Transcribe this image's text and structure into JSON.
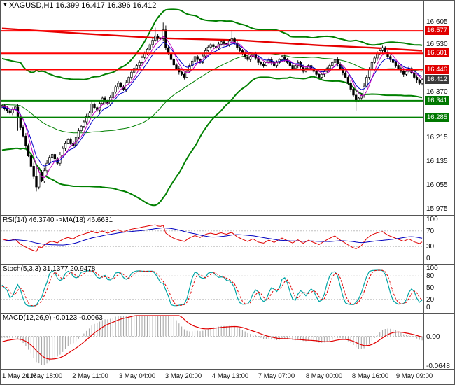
{
  "window": {
    "title_marker": "▼",
    "title": "XAGUSD,H1",
    "ohlc_text": "16.399 16.417 16.396 16.412"
  },
  "colors": {
    "level_red": "#FF0000",
    "level_green": "#008000",
    "bollinger": "#008000",
    "trend_ma": "#E60000",
    "ema_fast": "#0000C8",
    "sma_fast": "#C000C0",
    "rsi_line": "#E00000",
    "rsi_ma": "#0000C0",
    "stoch_k": "#00A5A5",
    "stoch_d": "#E00000",
    "macd_hist": "#A8A8A8",
    "macd_signal": "#E00000",
    "axis_text": "#111111",
    "current_box": "#3A3A3A"
  },
  "chart_data": {
    "type": "candlestick",
    "symbol": "XAGUSD",
    "timeframe": "H1",
    "title": "XAGUSD,H1 16.399 16.417 16.396 16.412",
    "x_labels": [
      "1 May 2018",
      "1 May 18:00",
      "2 May 11:00",
      "3 May 04:00",
      "3 May 20:00",
      "4 May 13:00",
      "7 May 07:00",
      "8 May 00:00",
      "8 May 16:00",
      "9 May 09:00"
    ],
    "y_axis_ticks": [
      "16.605",
      "16.530",
      "16.370",
      "16.215",
      "16.135",
      "16.055",
      "15.975"
    ],
    "levels": [
      {
        "price": 16.577,
        "color": "red"
      },
      {
        "price": 16.501,
        "color": "red"
      },
      {
        "price": 16.446,
        "color": "red"
      },
      {
        "price": 16.341,
        "color": "green"
      },
      {
        "price": 16.285,
        "color": "green"
      }
    ],
    "current_price": 16.412,
    "price_range": {
      "max": 16.66,
      "min": 15.965
    },
    "pre_closes": [
      16.5,
      16.48,
      16.45,
      16.47,
      16.44,
      16.41,
      16.43,
      16.4,
      16.37,
      16.39,
      16.36,
      16.33,
      16.35,
      16.32,
      16.29,
      16.31,
      16.28,
      16.25,
      16.27,
      16.24,
      16.22,
      16.24,
      16.26,
      16.28,
      16.26,
      16.24,
      16.26,
      16.28,
      16.3,
      16.32,
      16.3,
      16.28,
      16.3,
      16.32,
      16.34,
      16.33,
      16.31,
      16.32,
      16.33,
      16.32
    ],
    "closes": [
      16.325,
      16.315,
      16.308,
      16.3,
      16.312,
      16.32,
      16.285,
      16.25,
      16.222,
      16.19,
      16.155,
      16.12,
      16.085,
      16.05,
      16.1,
      16.07,
      16.105,
      16.13,
      16.15,
      16.16,
      16.145,
      16.13,
      16.158,
      16.18,
      16.198,
      16.21,
      16.198,
      16.19,
      16.218,
      16.24,
      16.255,
      16.27,
      16.288,
      16.3,
      16.33,
      16.318,
      16.31,
      16.332,
      16.35,
      16.34,
      16.33,
      16.352,
      16.37,
      16.388,
      16.4,
      16.388,
      16.38,
      16.402,
      16.42,
      16.437,
      16.45,
      16.46,
      16.47,
      16.487,
      16.5,
      16.515,
      16.53,
      16.545,
      16.56,
      16.552,
      16.55,
      16.58,
      16.52,
      16.5,
      16.48,
      16.462,
      16.45,
      16.438,
      16.43,
      16.42,
      16.44,
      16.46,
      16.475,
      16.49,
      16.48,
      16.47,
      16.492,
      16.51,
      16.522,
      16.53,
      16.524,
      16.52,
      16.532,
      16.54,
      16.534,
      16.53,
      16.542,
      16.55,
      16.535,
      16.52,
      16.51,
      16.5,
      16.49,
      16.48,
      16.49,
      16.5,
      16.485,
      16.47,
      16.465,
      16.46,
      16.47,
      16.48,
      16.47,
      16.46,
      16.47,
      16.48,
      16.49,
      16.48,
      16.47,
      16.46,
      16.45,
      16.46,
      16.47,
      16.455,
      16.44,
      16.45,
      16.46,
      16.45,
      16.44,
      16.43,
      16.42,
      16.43,
      16.44,
      16.45,
      16.46,
      16.47,
      16.48,
      16.465,
      16.45,
      16.435,
      16.42,
      16.4,
      16.38,
      16.36,
      16.34,
      16.35,
      16.36,
      16.39,
      16.42,
      16.445,
      16.47,
      16.485,
      16.5,
      16.51,
      16.52,
      16.505,
      16.49,
      16.48,
      16.47,
      16.46,
      16.45,
      16.44,
      16.43,
      16.44,
      16.45,
      16.435,
      16.42,
      16.41,
      16.4,
      16.412
    ],
    "wick_overrides": {
      "6": {
        "l": 16.24
      },
      "13": {
        "h": 16.115,
        "l": 16.035
      },
      "58": {
        "h": 16.588
      },
      "61": {
        "h": 16.605
      },
      "87": {
        "h": 16.58
      },
      "134": {
        "l": 16.308
      }
    },
    "trend_ma_points": [
      [
        0,
        16.585
      ],
      [
        30,
        16.568
      ],
      [
        60,
        16.552
      ],
      [
        90,
        16.545
      ],
      [
        120,
        16.528
      ],
      [
        140,
        16.52
      ],
      [
        159,
        16.51
      ]
    ],
    "bollinger": {
      "period": 48,
      "deviation": 2.2
    },
    "fast_ma": {
      "ema": 8,
      "sma": 5
    },
    "indicators": {
      "rsi": {
        "label": "RSI(14) 46.3740 ->MA(18) 46.6631",
        "period": 14,
        "ma_period": 18,
        "axis_values": [
          100,
          70,
          30,
          0
        ],
        "guides": [
          70,
          30
        ],
        "last_value": 46.374,
        "last_ma": 46.6631
      },
      "stoch": {
        "label": "Stoch(5,3,3) 31.1377 20.9478",
        "k_period": 5,
        "slowing": 3,
        "d_period": 3,
        "axis_values": [
          100,
          80,
          50,
          20,
          0
        ],
        "guides": [
          80,
          20
        ],
        "last_k": 31.1377,
        "last_d": 20.9478
      },
      "macd": {
        "label": "MACD(12,26,9) -0.0123 -0.0063",
        "fast": 12,
        "slow": 26,
        "signal": 9,
        "axis": [
          {
            "text": "0.00",
            "value": 0
          },
          {
            "text": "-0.0648",
            "value": -0.0648
          }
        ],
        "range": {
          "max": 0.045,
          "min": -0.0648
        },
        "last_macd": -0.0123,
        "last_signal": -0.0063
      }
    }
  }
}
